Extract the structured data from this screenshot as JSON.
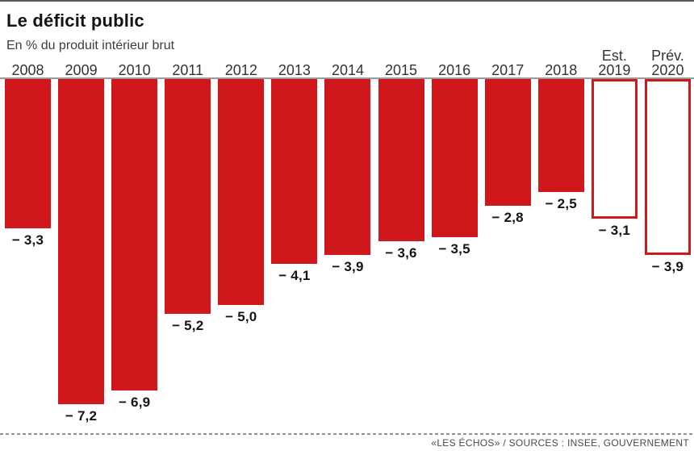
{
  "header": {
    "title": "Le déficit public",
    "subtitle": "En % du produit intérieur brut"
  },
  "footer": {
    "source": "«LES ÉCHOS» / SOURCES : INSEE, GOUVERNEMENT"
  },
  "colors": {
    "bar_red": "#d0181c",
    "axis_grey": "#989898",
    "text_dark": "#141414"
  },
  "chart_data": {
    "type": "bar",
    "title": "Le déficit public",
    "subtitle": "En % du produit intérieur brut",
    "orientation": "vertical-downward",
    "grid": false,
    "legend": false,
    "ylim": [
      -8,
      0
    ],
    "categories": [
      "2008",
      "2009",
      "2010",
      "2011",
      "2012",
      "2013",
      "2014",
      "2015",
      "2016",
      "2017",
      "2018",
      "2019",
      "2020"
    ],
    "category_prefixes": [
      "",
      "",
      "",
      "",
      "",
      "",
      "",
      "",
      "",
      "",
      "",
      "Est.",
      "Prév."
    ],
    "values": [
      -3.3,
      -7.2,
      -6.9,
      -5.2,
      -5.0,
      -4.1,
      -3.9,
      -3.6,
      -3.5,
      -2.8,
      -2.5,
      -3.1,
      -3.9
    ],
    "value_labels": [
      "− 3,3",
      "− 7,2",
      "− 6,9",
      "− 5,2",
      "− 5,0",
      "− 4,1",
      "− 3,9",
      "− 3,6",
      "− 3,5",
      "− 2,8",
      "− 2,5",
      "− 3,1",
      "− 3,9"
    ],
    "bar_styles": [
      "solid",
      "solid",
      "solid",
      "solid",
      "solid",
      "solid",
      "solid",
      "solid",
      "solid",
      "solid",
      "solid",
      "outline",
      "outline"
    ]
  }
}
